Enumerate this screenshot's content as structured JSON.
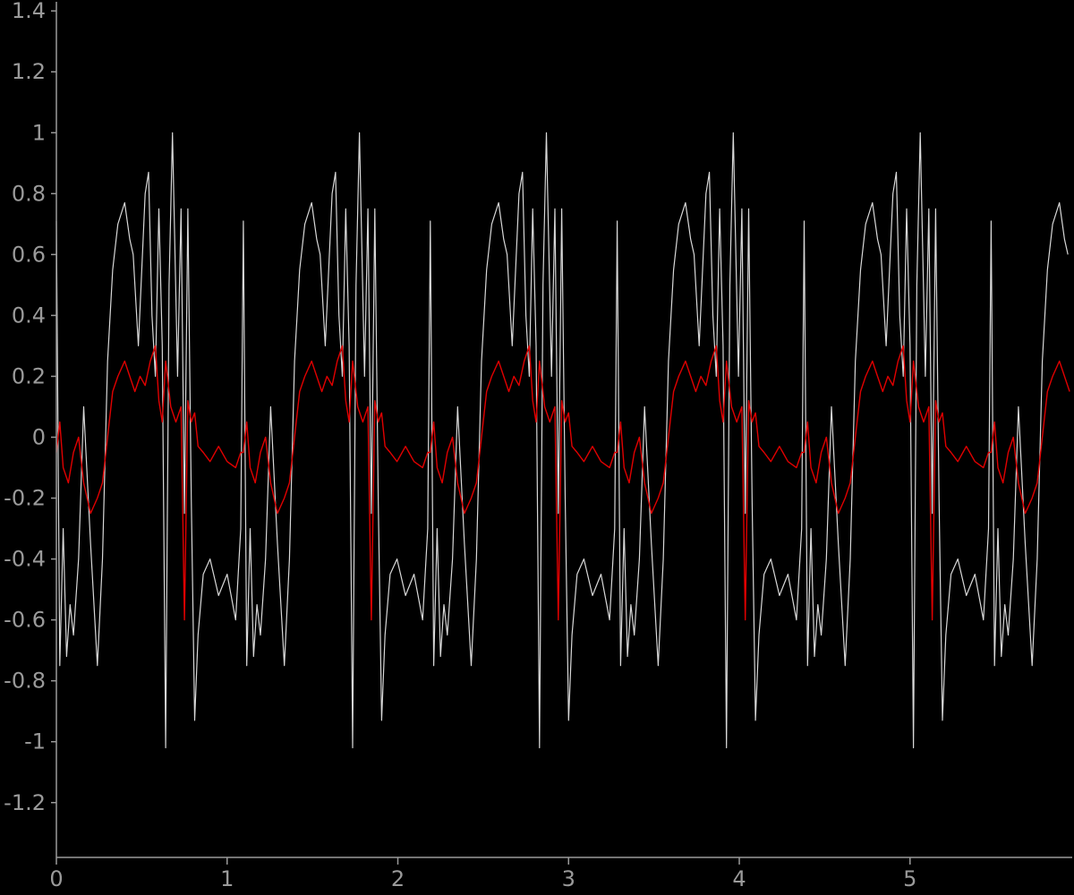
{
  "chart_data": {
    "type": "line",
    "title": "",
    "xlabel": "",
    "ylabel": "",
    "xlim": [
      0,
      5.95
    ],
    "ylim": [
      -1.38,
      1.43
    ],
    "x_ticks": [
      0,
      1,
      2,
      3,
      4,
      5
    ],
    "x_tick_labels": [
      "0",
      "1",
      "2",
      "3",
      "4",
      "5"
    ],
    "y_ticks": [
      -1.2,
      -1,
      -0.8,
      -0.6,
      -0.4,
      -0.2,
      0,
      0.2,
      0.4,
      0.6,
      0.8,
      1,
      1.2,
      1.4
    ],
    "y_tick_labels": [
      "-1.2",
      "-1",
      "-0.8",
      "-0.6",
      "-0.4",
      "-0.2",
      "0",
      "0.2",
      "0.4",
      "0.6",
      "0.8",
      "1",
      "1.2",
      "1.4"
    ],
    "grid": false,
    "legend": "none",
    "colors": {
      "background": "#000000",
      "axis": "#9a9a9a",
      "raw": "#d8d8d8",
      "filtered": "#e00000"
    },
    "period": 1.095,
    "series": [
      {
        "color": "#d8d8d8",
        "x": [
          0,
          0.02,
          0.04,
          0.06,
          0.08,
          0.1,
          0.13,
          0.16,
          0.2,
          0.24,
          0.27,
          0.3,
          0.33,
          0.36,
          0.4,
          0.43,
          0.45,
          0.48,
          0.52,
          0.54,
          0.56,
          0.58,
          0.6,
          0.62,
          0.64,
          0.66,
          0.68,
          0.71,
          0.73,
          0.75,
          0.77,
          0.79,
          0.81,
          0.83,
          0.86,
          0.9,
          0.95,
          1.0,
          1.05,
          1.08
        ],
        "y": [
          0.71,
          -0.75,
          -0.3,
          -0.72,
          -0.55,
          -0.65,
          -0.4,
          0.1,
          -0.35,
          -0.75,
          -0.4,
          0.25,
          0.55,
          0.7,
          0.77,
          0.65,
          0.6,
          0.3,
          0.8,
          0.87,
          0.4,
          0.2,
          0.75,
          0.3,
          -1.02,
          0.5,
          1.0,
          0.2,
          0.75,
          -0.25,
          0.75,
          -0.2,
          -0.93,
          -0.65,
          -0.45,
          -0.4,
          -0.52,
          -0.45,
          -0.6,
          -0.3
        ]
      },
      {
        "color": "#e00000",
        "x": [
          0,
          0.02,
          0.04,
          0.07,
          0.1,
          0.13,
          0.16,
          0.2,
          0.24,
          0.27,
          0.3,
          0.33,
          0.36,
          0.4,
          0.43,
          0.46,
          0.49,
          0.52,
          0.55,
          0.58,
          0.6,
          0.62,
          0.64,
          0.67,
          0.7,
          0.73,
          0.75,
          0.77,
          0.79,
          0.81,
          0.83,
          0.86,
          0.9,
          0.95,
          1.0,
          1.05,
          1.08
        ],
        "y": [
          -0.05,
          0.05,
          -0.1,
          -0.15,
          -0.05,
          0.0,
          -0.15,
          -0.25,
          -0.2,
          -0.15,
          0.0,
          0.15,
          0.2,
          0.25,
          0.2,
          0.15,
          0.2,
          0.17,
          0.25,
          0.3,
          0.12,
          0.05,
          0.25,
          0.1,
          0.05,
          0.1,
          -0.6,
          0.12,
          0.05,
          0.08,
          -0.03,
          -0.05,
          -0.08,
          -0.03,
          -0.08,
          -0.1,
          -0.05
        ]
      }
    ]
  }
}
